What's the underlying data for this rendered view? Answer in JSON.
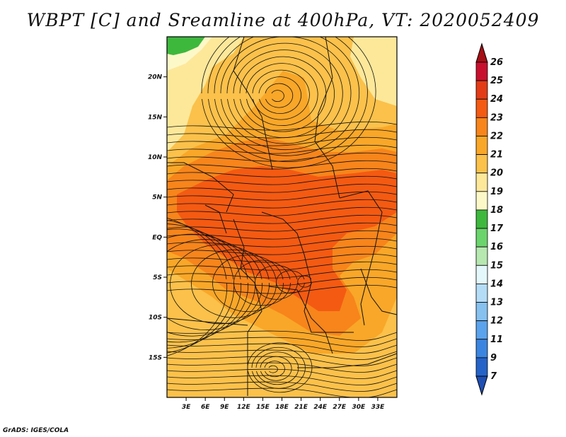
{
  "title": "WBPT [C] and Sreamline at 400hPa, VT: 2020052409",
  "footer": "GrADS: IGES/COLA",
  "map": {
    "lon_range": [
      0,
      36
    ],
    "lat_range": [
      -20,
      25
    ],
    "lon_ticks": [
      {
        "value": 3,
        "label": "3E"
      },
      {
        "value": 6,
        "label": "6E"
      },
      {
        "value": 9,
        "label": "9E"
      },
      {
        "value": 12,
        "label": "12E"
      },
      {
        "value": 15,
        "label": "15E"
      },
      {
        "value": 18,
        "label": "18E"
      },
      {
        "value": 21,
        "label": "21E"
      },
      {
        "value": 24,
        "label": "24E"
      },
      {
        "value": 27,
        "label": "27E"
      },
      {
        "value": 30,
        "label": "30E"
      },
      {
        "value": 33,
        "label": "33E"
      }
    ],
    "lat_ticks": [
      {
        "value": 20,
        "label": "20N"
      },
      {
        "value": 15,
        "label": "15N"
      },
      {
        "value": 10,
        "label": "10N"
      },
      {
        "value": 5,
        "label": "5N"
      },
      {
        "value": 0,
        "label": "EQ"
      },
      {
        "value": -5,
        "label": "5S"
      },
      {
        "value": -10,
        "label": "10S"
      },
      {
        "value": -15,
        "label": "15S"
      }
    ]
  },
  "colorbar": {
    "levels": [
      "26",
      "25",
      "24",
      "23",
      "22",
      "21",
      "20",
      "19",
      "18",
      "17",
      "16",
      "15",
      "14",
      "13",
      "12",
      "11",
      "9",
      "7"
    ],
    "colors": [
      "#a50f15",
      "#c8102e",
      "#e33b17",
      "#f45a12",
      "#f7851b",
      "#f9a728",
      "#fbc14a",
      "#fde89a",
      "#fdf8c8",
      "#3db83d",
      "#6cd46c",
      "#b6e8b0",
      "#e4f7fb",
      "#b4dcf6",
      "#86c1f0",
      "#5ba3ec",
      "#3b85e0",
      "#2563c9",
      "#1f4fb3"
    ]
  }
}
